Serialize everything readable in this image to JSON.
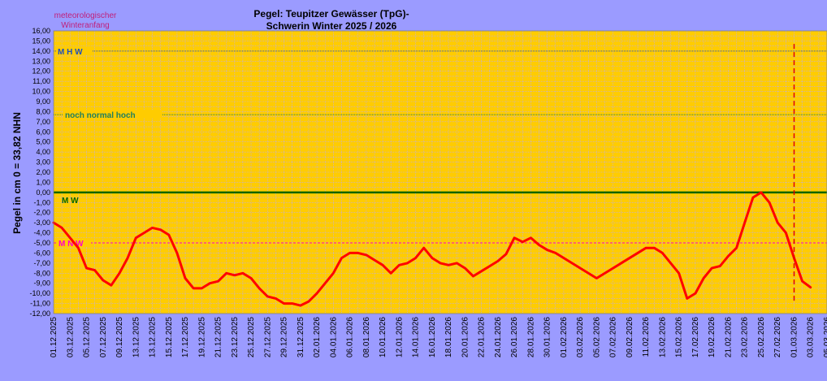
{
  "chart_data": {
    "type": "line",
    "title": "Pegel: Teupitzer Gewässer (TpG)-",
    "subtitle": "Schwerin  Winter 2025 / 2026",
    "corner_note": [
      "meteorologischer",
      "Winteranfang"
    ],
    "ylabel": "Pegel in cm     0 = 33,82 NHN",
    "xlabel": "",
    "ylim": [
      -12,
      16
    ],
    "y_ticks": [
      "16,00",
      "15,00",
      "14,00",
      "13,00",
      "12,00",
      "11,00",
      "10,00",
      "9,00",
      "8,00",
      "7,00",
      "6,00",
      "5,00",
      "4,00",
      "3,00",
      "2,00",
      "1,00",
      "0,00",
      "-1,00",
      "-2,00",
      "-3,00",
      "-4,00",
      "-5,00",
      "-6,00",
      "-7,00",
      "-8,00",
      "-9,00",
      "-10,00",
      "-11,00",
      "-12,00"
    ],
    "x_ticks": [
      "01.12.2025",
      "03.12.2025",
      "05.12.2025",
      "07.12.2025",
      "09.12.2025",
      "13.12.2025",
      "13.12.2025",
      "15.12.2025",
      "17.12.2025",
      "19.12.2025",
      "21.12.2025",
      "23.12.2025",
      "25.12.2025",
      "27.12.2025",
      "29.12.2025",
      "31.12.2025",
      "02.01.2026",
      "04.01.2026",
      "06.01.2026",
      "08.01.2026",
      "10.01.2026",
      "12.01.2026",
      "14.01.2026",
      "16.01.2026",
      "18.01.2026",
      "20.01.2026",
      "22.01.2026",
      "24.01.2026",
      "26.01.2026",
      "28.01.2026",
      "30.01.2026",
      "01.02.2026",
      "03.02.2026",
      "05.02.2026",
      "07.02.2026",
      "09.02.2026",
      "11.02.2026",
      "13.02.2026",
      "15.02.2026",
      "17.02.2026",
      "19.02.2026",
      "21.02.2026",
      "23.02.2026",
      "25.02.2026",
      "27.02.2026",
      "01.03.2026",
      "03.03.2026",
      "05.03.2026"
    ],
    "grid": true,
    "reference_lines": [
      {
        "label": "M H W",
        "value": 14.0,
        "color": "#1f4fbf",
        "style": "dotted"
      },
      {
        "label": "noch  normal  hoch",
        "value": 7.7,
        "color": "#1f7f5f",
        "style": "dotted"
      },
      {
        "label": "M W",
        "value": 0.0,
        "color": "#006400",
        "style": "solid"
      },
      {
        "label": "M N W",
        "value": -5.0,
        "color": "#ff00cc",
        "style": "dashed"
      }
    ],
    "current_day_marker": {
      "x": "01.03.2026",
      "color": "#e00000",
      "style": "dashed"
    },
    "series": [
      {
        "color": "#ff0000",
        "x": [
          "01.12.2025",
          "02.12.2025",
          "03.12.2025",
          "04.12.2025",
          "05.12.2025",
          "06.12.2025",
          "07.12.2025",
          "08.12.2025",
          "09.12.2025",
          "10.12.2025",
          "11.12.2025",
          "12.12.2025",
          "13.12.2025",
          "14.12.2025",
          "15.12.2025",
          "16.12.2025",
          "17.12.2025",
          "18.12.2025",
          "19.12.2025",
          "20.12.2025",
          "21.12.2025",
          "22.12.2025",
          "23.12.2025",
          "24.12.2025",
          "25.12.2025",
          "26.12.2025",
          "27.12.2025",
          "28.12.2025",
          "29.12.2025",
          "30.12.2025",
          "31.12.2025",
          "01.01.2026",
          "02.01.2026",
          "03.01.2026",
          "04.01.2026",
          "05.01.2026",
          "06.01.2026",
          "07.01.2026",
          "08.01.2026",
          "09.01.2026",
          "10.01.2026",
          "11.01.2026",
          "12.01.2026",
          "13.01.2026",
          "14.01.2026",
          "15.01.2026",
          "16.01.2026",
          "17.01.2026",
          "18.01.2026",
          "19.01.2026",
          "20.01.2026",
          "21.01.2026",
          "22.01.2026",
          "23.01.2026",
          "24.01.2026",
          "25.01.2026",
          "26.01.2026",
          "27.01.2026",
          "28.01.2026",
          "29.01.2026",
          "30.01.2026",
          "31.01.2026",
          "05.02.2026",
          "11.02.2026",
          "12.02.2026",
          "13.02.2026",
          "14.02.2026",
          "15.02.2026",
          "16.02.2026",
          "17.02.2026",
          "18.02.2026",
          "19.02.2026",
          "20.02.2026",
          "21.02.2026",
          "22.02.2026",
          "23.02.2026",
          "24.02.2026",
          "25.02.2026",
          "26.02.2026",
          "27.02.2026",
          "28.02.2026",
          "01.03.2026",
          "02.03.2026",
          "03.03.2026"
        ],
        "values": [
          -3.0,
          -3.5,
          -4.5,
          -5.5,
          -7.5,
          -7.7,
          -8.7,
          -9.2,
          -8.0,
          -6.5,
          -4.5,
          -4.0,
          -3.5,
          -3.7,
          -4.2,
          -6.0,
          -8.5,
          -9.5,
          -9.5,
          -9.0,
          -8.8,
          -8.0,
          -8.2,
          -8.0,
          -8.5,
          -9.5,
          -10.3,
          -10.5,
          -11.0,
          -11.0,
          -11.2,
          -10.8,
          -10.0,
          -9.0,
          -8.0,
          -6.5,
          -6.0,
          -6.0,
          -6.2,
          -6.7,
          -7.2,
          -8.0,
          -7.2,
          -7.0,
          -6.5,
          -5.5,
          -6.5,
          -7.0,
          -7.2,
          -7.0,
          -7.5,
          -8.3,
          -7.8,
          -7.3,
          -6.8,
          -6.1,
          -4.5,
          -4.9,
          -4.5,
          -5.2,
          -5.7,
          -6.0,
          -8.5,
          -5.5,
          -5.5,
          -6.0,
          -7.0,
          -8.0,
          -10.5,
          -10.0,
          -8.5,
          -7.5,
          -7.3,
          -6.3,
          -5.5,
          -3.0,
          -0.5,
          0.0,
          -1.0,
          -3.0,
          -4.0,
          -6.5,
          -8.8,
          -9.4
        ]
      }
    ]
  }
}
